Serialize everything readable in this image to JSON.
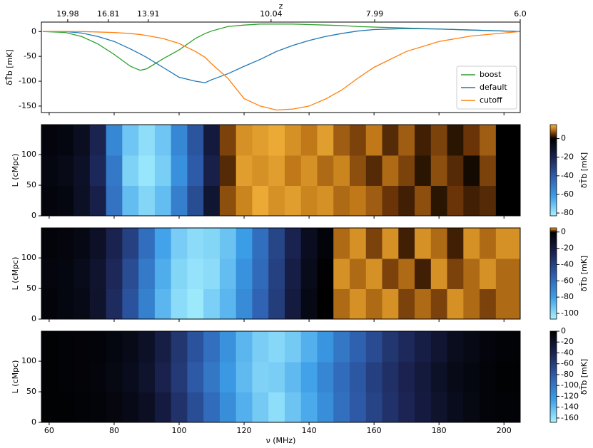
{
  "colormap": {
    "negative": [
      "#000000",
      "#1c2454",
      "#2f5fb0",
      "#3c9ee8",
      "#a8f2ff"
    ],
    "positive": [
      "#000000",
      "#6a3408",
      "#c07818",
      "#f6b73c"
    ]
  },
  "chart_data": [
    {
      "type": "line",
      "ylabel": "δT̄b [mK]",
      "top_axis_label": "z",
      "top_ticks": [
        {
          "value": 65.7,
          "label": "19.98"
        },
        {
          "value": 78.2,
          "label": "16.81"
        },
        {
          "value": 90.5,
          "label": "13.91"
        },
        {
          "value": 128.3,
          "label": "10.04"
        },
        {
          "value": 160.2,
          "label": "7.99"
        },
        {
          "value": 205,
          "label": "6.0"
        }
      ],
      "xlim": [
        57.6,
        205
      ],
      "ylim": [
        -163,
        19
      ],
      "yticks": [
        0,
        -50,
        -100,
        -150
      ],
      "legend": "lower right",
      "x": [
        58,
        65,
        70,
        75,
        80,
        85,
        88,
        90,
        95,
        100,
        105,
        108,
        110,
        115,
        120,
        125,
        130,
        135,
        140,
        145,
        150,
        155,
        160,
        170,
        180,
        190,
        205
      ],
      "series": [
        {
          "name": "boost",
          "color": "#2ca02c",
          "values": [
            0,
            -2,
            -10,
            -25,
            -46,
            -70,
            -78,
            -75,
            -55,
            -37,
            -14,
            -4,
            1,
            10,
            13,
            15,
            15,
            15,
            14,
            13,
            12,
            10,
            9,
            7,
            5,
            3,
            0
          ]
        },
        {
          "name": "default",
          "color": "#1f77b4",
          "values": [
            0,
            0,
            -3,
            -10,
            -20,
            -35,
            -45,
            -52,
            -72,
            -92,
            -100,
            -103,
            -97,
            -85,
            -70,
            -56,
            -40,
            -28,
            -18,
            -10,
            -4,
            1,
            4,
            6,
            5,
            3,
            0
          ]
        },
        {
          "name": "cutoff",
          "color": "#ff7f0e",
          "values": [
            0,
            0,
            0,
            -1,
            -2,
            -4,
            -6,
            -8,
            -14,
            -24,
            -40,
            -52,
            -65,
            -94,
            -135,
            -150,
            -158,
            -156,
            -150,
            -136,
            -118,
            -94,
            -72,
            -40,
            -20,
            -9,
            0
          ]
        }
      ]
    },
    {
      "type": "heatmap",
      "ylabel": "L (cMpc)",
      "clabel": "δT̄b [mK]",
      "x": [
        60,
        65,
        70,
        75,
        80,
        85,
        90,
        95,
        100,
        105,
        110,
        115,
        120,
        125,
        130,
        135,
        140,
        145,
        150,
        155,
        160,
        165,
        170,
        175,
        180,
        185,
        190,
        195,
        200
      ],
      "y": [
        25,
        74,
        124
      ],
      "xlim": [
        57.6,
        205
      ],
      "ylim": [
        0,
        149
      ],
      "yticks": [
        0,
        50,
        100
      ],
      "clim": [
        -83,
        15
      ],
      "cticks": [
        0,
        -20,
        -40,
        -60,
        -80
      ],
      "values": [
        [
          -3,
          -4,
          -9,
          -18,
          -48,
          -70,
          -76,
          -70,
          -52,
          -35,
          -12,
          7,
          11,
          14,
          12,
          13,
          11,
          12,
          9,
          10,
          8,
          5,
          3,
          7,
          2,
          5,
          3,
          4,
          0
        ],
        [
          -4,
          -6,
          -10,
          -22,
          -50,
          -75,
          -80,
          -74,
          -58,
          -40,
          -18,
          4,
          13,
          12,
          13,
          10,
          12,
          9,
          11,
          7,
          4,
          9,
          6,
          2,
          7,
          4,
          1,
          6,
          0
        ],
        [
          -3,
          -4,
          -8,
          -20,
          -55,
          -72,
          -78,
          -72,
          -55,
          -38,
          -15,
          6,
          12,
          13,
          14,
          12,
          10,
          13,
          8,
          6,
          10,
          4,
          8,
          3,
          6,
          2,
          5,
          8,
          0
        ]
      ]
    },
    {
      "type": "heatmap",
      "ylabel": "L (cMpc)",
      "clabel": "δT̄b [mK]",
      "x": [
        60,
        65,
        70,
        75,
        80,
        85,
        90,
        95,
        100,
        105,
        110,
        115,
        120,
        125,
        130,
        135,
        140,
        145,
        150,
        155,
        160,
        165,
        170,
        175,
        180,
        185,
        190,
        195,
        200
      ],
      "y": [
        25,
        74,
        124
      ],
      "xlim": [
        57.6,
        205
      ],
      "ylim": [
        0,
        149
      ],
      "yticks": [
        0,
        50,
        100
      ],
      "clim": [
        -107,
        5
      ],
      "cticks": [
        0,
        -20,
        -40,
        -60,
        -80,
        -100
      ],
      "values": [
        [
          -3,
          -5,
          -7,
          -14,
          -30,
          -48,
          -68,
          -88,
          -100,
          -104,
          -96,
          -88,
          -72,
          -55,
          -38,
          -20,
          -6,
          0,
          3,
          4,
          3,
          4,
          2,
          3,
          2,
          4,
          3,
          2,
          3
        ],
        [
          -4,
          -5,
          -8,
          -15,
          -28,
          -45,
          -65,
          -85,
          -98,
          -102,
          -100,
          -90,
          -75,
          -58,
          -40,
          -22,
          -8,
          -1,
          4,
          3,
          4,
          2,
          3,
          1,
          4,
          2,
          3,
          4,
          3
        ],
        [
          -3,
          -4,
          -6,
          -12,
          -25,
          -40,
          -60,
          -82,
          -95,
          -100,
          -98,
          -92,
          -80,
          -60,
          -42,
          -25,
          -10,
          -3,
          3,
          4,
          2,
          4,
          1,
          4,
          3,
          1,
          4,
          3,
          4
        ]
      ]
    },
    {
      "type": "heatmap",
      "ylabel": "L (cMpc)",
      "clabel": "δT̄b [mK]",
      "xlabel": "ν (MHz)",
      "xticks": [
        60,
        80,
        100,
        120,
        140,
        160,
        180,
        200
      ],
      "x": [
        60,
        65,
        70,
        75,
        80,
        85,
        90,
        95,
        100,
        105,
        110,
        115,
        120,
        125,
        130,
        135,
        140,
        145,
        150,
        155,
        160,
        165,
        170,
        175,
        180,
        185,
        190,
        195,
        200
      ],
      "y": [
        25,
        74,
        124
      ],
      "xlim": [
        57.6,
        205
      ],
      "ylim": [
        0,
        149
      ],
      "yticks": [
        0,
        50,
        100
      ],
      "clim": [
        -168,
        0
      ],
      "cticks": [
        0,
        -20,
        -40,
        -60,
        -80,
        -100,
        -120,
        -140,
        -160
      ],
      "values": [
        [
          -2,
          -2,
          -3,
          -5,
          -7,
          -11,
          -18,
          -32,
          -52,
          -72,
          -92,
          -115,
          -135,
          -148,
          -158,
          -145,
          -132,
          -115,
          -95,
          -80,
          -65,
          -52,
          -42,
          -32,
          -22,
          -14,
          -9,
          -5,
          -3
        ],
        [
          -2,
          -3,
          -4,
          -6,
          -9,
          -14,
          -22,
          -38,
          -58,
          -80,
          -100,
          -122,
          -140,
          -152,
          -150,
          -140,
          -128,
          -110,
          -92,
          -78,
          -62,
          -50,
          -40,
          -30,
          -20,
          -12,
          -8,
          -5,
          -2
        ],
        [
          -2,
          -3,
          -4,
          -5,
          -8,
          -12,
          -20,
          -35,
          -55,
          -75,
          -95,
          -118,
          -138,
          -150,
          -155,
          -148,
          -135,
          -120,
          -100,
          -85,
          -70,
          -55,
          -45,
          -35,
          -25,
          -15,
          -10,
          -6,
          -3
        ]
      ]
    }
  ]
}
